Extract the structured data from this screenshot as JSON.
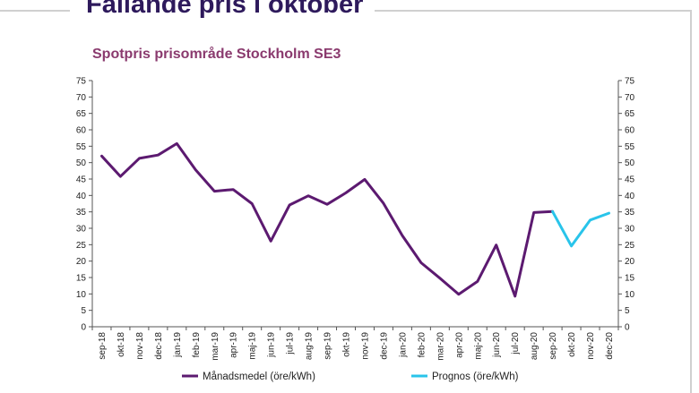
{
  "slide": {
    "title": "Fallande pris i oktober"
  },
  "colors": {
    "title": "#2e1a5c",
    "chart_title": "#8a3a6e",
    "series_actual": "#5c1a70",
    "series_forecast": "#29c4ea"
  },
  "chart_data": {
    "type": "line",
    "title": "Spotpris prisområde Stockholm SE3",
    "categories": [
      "sep-18",
      "okt-18",
      "nov-18",
      "dec-18",
      "jan-19",
      "feb-19",
      "mar-19",
      "apr-19",
      "maj-19",
      "jun-19",
      "jul-19",
      "aug-19",
      "sep-19",
      "okt-19",
      "nov-19",
      "dec-19",
      "jan-20",
      "feb-20",
      "mar-20",
      "apr-20",
      "maj-20",
      "jun-20",
      "jul-20",
      "aug-20",
      "sep-20",
      "okt-20",
      "nov-20",
      "dec-20"
    ],
    "series": [
      {
        "name": "Månadsmedel (öre/kWh)",
        "color": "#5c1a70",
        "values": [
          52,
          45.8,
          51.3,
          52.3,
          55.8,
          47.8,
          41.3,
          41.8,
          37.5,
          26.1,
          37.1,
          39.9,
          37.3,
          40.8,
          44.9,
          37.6,
          27.8,
          19.5,
          14.8,
          9.9,
          13.8,
          24.9,
          9.3,
          34.8,
          35.1,
          null,
          null,
          null
        ]
      },
      {
        "name": "Prognos (öre/kWh)",
        "color": "#29c4ea",
        "values": [
          null,
          null,
          null,
          null,
          null,
          null,
          null,
          null,
          null,
          null,
          null,
          null,
          null,
          null,
          null,
          null,
          null,
          null,
          null,
          null,
          null,
          null,
          null,
          null,
          35.1,
          24.6,
          32.5,
          34.6
        ]
      }
    ],
    "ylim": [
      0,
      75
    ],
    "yticks": [
      "0",
      "5",
      "10",
      "15",
      "20",
      "25",
      "30",
      "35",
      "40",
      "45",
      "50",
      "55",
      "60",
      "65",
      "70",
      "75"
    ],
    "y2ticks": [
      "0",
      "5",
      "10",
      "15",
      "20",
      "25",
      "30",
      "35",
      "40",
      "45",
      "50",
      "55",
      "60",
      "65",
      "70",
      "75"
    ],
    "legend_position": "bottom",
    "grid": false
  }
}
